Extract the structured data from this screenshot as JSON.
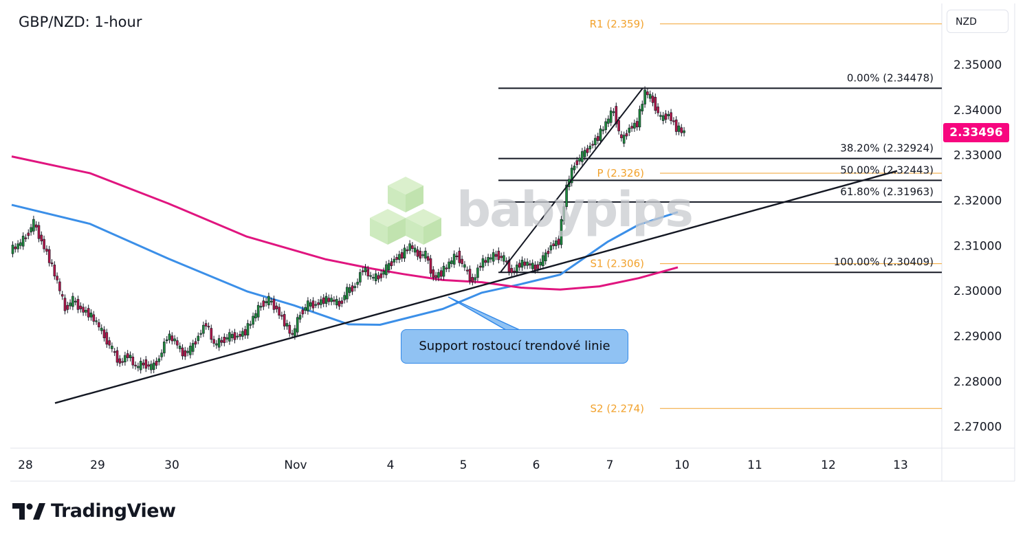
{
  "header": {
    "title": "GBP/NZD: 1-hour",
    "currency": "NZD"
  },
  "annotation": {
    "callout": "Support rostoucí trendové linie"
  },
  "watermark": {
    "brand": "babypips"
  },
  "footer": {
    "brand": "TradingView"
  },
  "colors": {
    "candle_up": "#1e8a3c",
    "candle_down": "#b5174b",
    "ma_fast": "#3b8fe8",
    "ma_slow": "#e0157f",
    "pivot": "#f2a22c",
    "fib": "#131722",
    "price_tag": "#f7067f",
    "callout": "#90c2f3"
  },
  "chart_data": {
    "type": "candlestick",
    "symbol": "GBP/NZD",
    "timeframe": "1-hour",
    "y_range": [
      2.2645,
      2.3625
    ],
    "y_ticks": [
      "2.35000",
      "2.34000",
      "2.33000",
      "2.32000",
      "2.31000",
      "2.30000",
      "2.29000",
      "2.28000",
      "2.27000"
    ],
    "x_ticks": [
      "28",
      "29",
      "30",
      "Nov",
      "4",
      "5",
      "6",
      "7",
      "10",
      "11",
      "12",
      "13"
    ],
    "last_price": "2.33496",
    "pivot_levels": [
      {
        "label": "R1 (2.359)",
        "value": 2.359
      },
      {
        "label": "P (2.326)",
        "value": 2.326
      },
      {
        "label": "S1 (2.306)",
        "value": 2.306
      },
      {
        "label": "S2 (2.274)",
        "value": 2.274
      }
    ],
    "fibonacci_levels": [
      {
        "label": "0.00% (2.34478)",
        "value": 2.34478
      },
      {
        "label": "38.20% (2.32924)",
        "value": 2.32924
      },
      {
        "label": "50.00% (2.32443)",
        "value": 2.32443
      },
      {
        "label": "61.80% (2.31963)",
        "value": 2.31963
      },
      {
        "label": "100.00% (2.30409)",
        "value": 2.30409
      }
    ],
    "close_path": [
      [
        0,
        2.31
      ],
      [
        1,
        2.312
      ],
      [
        2,
        2.315
      ],
      [
        3,
        2.311
      ],
      [
        4,
        2.307
      ],
      [
        5,
        2.302
      ],
      [
        6,
        2.296
      ],
      [
        7,
        2.298
      ],
      [
        8,
        2.296
      ],
      [
        9,
        2.295
      ],
      [
        10,
        2.293
      ],
      [
        11,
        2.29
      ],
      [
        12,
        2.287
      ],
      [
        13,
        2.284
      ],
      [
        14,
        2.286
      ],
      [
        15,
        2.283
      ],
      [
        16,
        2.284
      ],
      [
        17,
        2.283
      ],
      [
        18,
        2.285
      ],
      [
        19,
        2.29
      ],
      [
        20,
        2.289
      ],
      [
        21,
        2.286
      ],
      [
        22,
        2.287
      ],
      [
        23,
        2.29
      ],
      [
        24,
        2.293
      ],
      [
        25,
        2.288
      ],
      [
        26,
        2.289
      ],
      [
        27,
        2.29
      ],
      [
        28,
        2.29
      ],
      [
        29,
        2.291
      ],
      [
        30,
        2.294
      ],
      [
        31,
        2.297
      ],
      [
        32,
        2.298
      ],
      [
        33,
        2.296
      ],
      [
        34,
        2.293
      ],
      [
        35,
        2.29
      ],
      [
        36,
        2.295
      ],
      [
        37,
        2.297
      ],
      [
        38,
        2.297
      ],
      [
        39,
        2.298
      ],
      [
        40,
        2.298
      ],
      [
        41,
        2.297
      ],
      [
        42,
        2.3
      ],
      [
        43,
        2.301
      ],
      [
        44,
        2.305
      ],
      [
        45,
        2.303
      ],
      [
        46,
        2.303
      ],
      [
        47,
        2.305
      ],
      [
        48,
        2.307
      ],
      [
        49,
        2.308
      ],
      [
        50,
        2.31
      ],
      [
        51,
        2.308
      ],
      [
        52,
        2.308
      ],
      [
        53,
        2.303
      ],
      [
        54,
        2.304
      ],
      [
        55,
        2.306
      ],
      [
        56,
        2.308
      ],
      [
        57,
        2.305
      ],
      [
        58,
        2.302
      ],
      [
        59,
        2.306
      ],
      [
        60,
        2.307
      ],
      [
        61,
        2.308
      ],
      [
        62,
        2.307
      ],
      [
        63,
        2.304
      ],
      [
        64,
        2.306
      ],
      [
        65,
        2.306
      ],
      [
        66,
        2.305
      ],
      [
        67,
        2.307
      ],
      [
        68,
        2.31
      ],
      [
        69,
        2.311
      ],
      [
        70,
        2.323
      ],
      [
        71,
        2.328
      ],
      [
        72,
        2.33
      ],
      [
        73,
        2.332
      ],
      [
        74,
        2.334
      ],
      [
        75,
        2.337
      ],
      [
        76,
        2.34
      ],
      [
        77,
        2.333
      ],
      [
        78,
        2.336
      ],
      [
        79,
        2.337
      ],
      [
        80,
        2.344
      ],
      [
        81,
        2.342
      ],
      [
        82,
        2.338
      ],
      [
        83,
        2.339
      ],
      [
        84,
        2.336
      ],
      [
        85,
        2.335
      ]
    ],
    "moving_averages": [
      {
        "name": "",
        "color": "#3b8fe8",
        "points": [
          [
            0,
            2.319
          ],
          [
            10,
            2.3148
          ],
          [
            20,
            2.3071
          ],
          [
            30,
            2.2999
          ],
          [
            36,
            2.2968
          ],
          [
            43,
            2.2926
          ],
          [
            47,
            2.2925
          ],
          [
            55,
            2.296
          ],
          [
            60,
            2.2996
          ],
          [
            65,
            2.3015
          ],
          [
            70,
            2.3036
          ],
          [
            76,
            2.3108
          ],
          [
            80,
            2.3146
          ],
          [
            85,
            2.3174
          ]
        ]
      },
      {
        "name": "",
        "color": "#e0157f",
        "points": [
          [
            0,
            2.3297
          ],
          [
            10,
            2.326
          ],
          [
            20,
            2.3193
          ],
          [
            30,
            2.312
          ],
          [
            40,
            2.307
          ],
          [
            46,
            2.3049
          ],
          [
            50,
            2.3037
          ],
          [
            55,
            2.3024
          ],
          [
            60,
            2.3019
          ],
          [
            65,
            2.3007
          ],
          [
            70,
            2.3003
          ],
          [
            75,
            2.301
          ],
          [
            80,
            2.3028
          ],
          [
            85,
            2.3052
          ]
        ]
      }
    ],
    "trendlines": [
      {
        "from": [
          "28",
          2.2752
        ],
        "to": [
          "13",
          2.3265
        ]
      },
      {
        "from": [
          "6",
          2.3041
        ],
        "to": [
          "7",
          2.3448
        ]
      }
    ]
  }
}
